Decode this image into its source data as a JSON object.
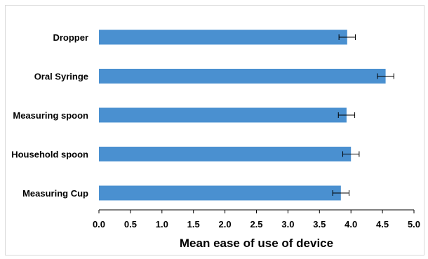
{
  "chart_data": {
    "type": "bar",
    "orientation": "horizontal",
    "categories": [
      "Dropper",
      "Oral Syringe",
      "Measuring spoon",
      "Household spoon",
      "Measuring Cup"
    ],
    "values": [
      3.94,
      4.55,
      3.93,
      4.0,
      3.84
    ],
    "errors": [
      0.13,
      0.13,
      0.13,
      0.13,
      0.13
    ],
    "xlabel": "Mean ease of use of device",
    "ylabel": "",
    "title": "",
    "xlim": [
      0,
      5
    ],
    "xticks": [
      "0.0",
      "0.5",
      "1.0",
      "1.5",
      "2.0",
      "2.5",
      "3.0",
      "3.5",
      "4.0",
      "4.5",
      "5.0"
    ],
    "grid": false,
    "legend": "none",
    "colors": {
      "bar": "#4a90d0",
      "error": "#000000",
      "axis": "#000000"
    }
  }
}
